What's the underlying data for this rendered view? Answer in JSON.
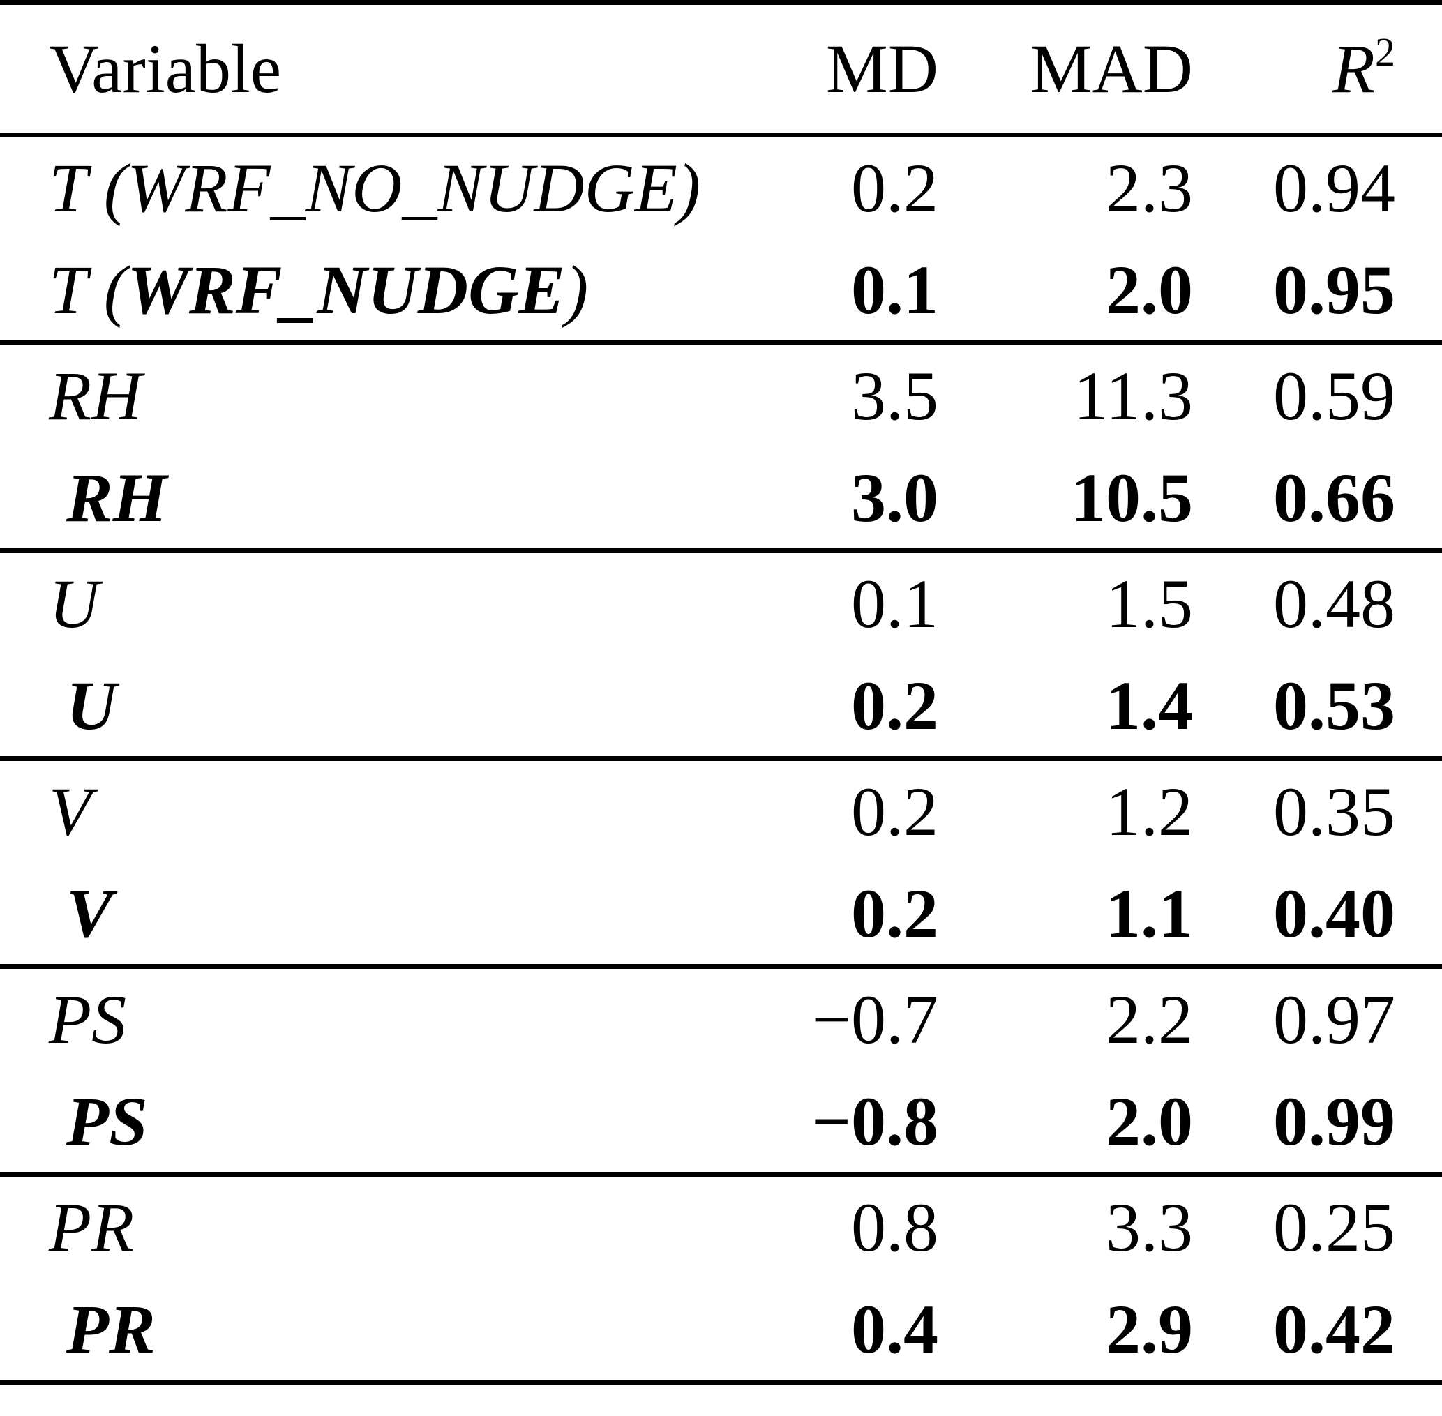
{
  "colors": {
    "text": "#000000",
    "background": "#ffffff"
  },
  "table": {
    "headers": {
      "variable": "Variable",
      "md": "MD",
      "mad": "MAD",
      "r2_base": "R",
      "r2_sup": "2"
    },
    "groups": [
      {
        "rows": [
          {
            "pre": "T (WRF_NO_NUDGE)",
            "bold_part": "",
            "post": "",
            "md": "0.2",
            "mad": "2.3",
            "r2": "0.94"
          },
          {
            "pre": "T (",
            "bold_part": "WRF_NUDGE",
            "post": ")",
            "md": "0.1",
            "mad": "2.0",
            "r2": "0.95"
          }
        ]
      },
      {
        "rows": [
          {
            "pre": "RH",
            "bold_part": "",
            "post": "",
            "md": "3.5",
            "mad": "11.3",
            "r2": "0.59"
          },
          {
            "pre": "",
            "bold_part": "RH",
            "post": "",
            "md": "3.0",
            "mad": "10.5",
            "r2": "0.66"
          }
        ]
      },
      {
        "rows": [
          {
            "pre": "U",
            "bold_part": "",
            "post": "",
            "md": "0.1",
            "mad": "1.5",
            "r2": "0.48"
          },
          {
            "pre": "",
            "bold_part": "U",
            "post": "",
            "md": "0.2",
            "mad": "1.4",
            "r2": "0.53"
          }
        ]
      },
      {
        "rows": [
          {
            "pre": "V",
            "bold_part": "",
            "post": "",
            "md": "0.2",
            "mad": "1.2",
            "r2": "0.35"
          },
          {
            "pre": "",
            "bold_part": "V",
            "post": "",
            "md": "0.2",
            "mad": "1.1",
            "r2": "0.40"
          }
        ]
      },
      {
        "rows": [
          {
            "pre": "PS",
            "bold_part": "",
            "post": "",
            "md": "−0.7",
            "mad": "2.2",
            "r2": "0.97"
          },
          {
            "pre": "",
            "bold_part": "PS",
            "post": "",
            "md": "−0.8",
            "mad": "2.0",
            "r2": "0.99"
          }
        ]
      },
      {
        "rows": [
          {
            "pre": "PR",
            "bold_part": "",
            "post": "",
            "md": "0.8",
            "mad": "3.3",
            "r2": "0.25"
          },
          {
            "pre": "",
            "bold_part": "PR",
            "post": "",
            "md": "0.4",
            "mad": "2.9",
            "r2": "0.42"
          }
        ]
      }
    ]
  }
}
